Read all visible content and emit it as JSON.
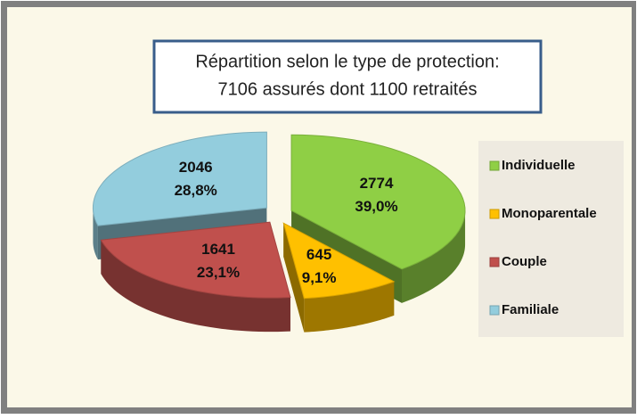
{
  "chart_data": {
    "type": "pie",
    "title": "Répartition selon le type de protection:",
    "subtitle": "7106 assurés dont 1100 retraités",
    "categories": [
      "Individuelle",
      "Monoparentale",
      "Couple",
      "Familiale"
    ],
    "values": [
      2774,
      645,
      1641,
      2046
    ],
    "shares": [
      39.0,
      9.1,
      23.1,
      28.8
    ],
    "share_labels": [
      "39,0%",
      "9,1%",
      "23,1%",
      "28,8%"
    ],
    "colors": [
      "#8fcf45",
      "#ffc000",
      "#c0504d",
      "#93cddd"
    ],
    "legend": "right"
  }
}
